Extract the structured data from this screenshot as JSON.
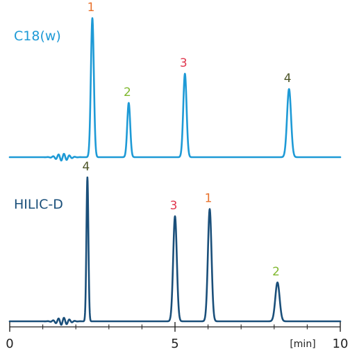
{
  "chart_data": {
    "type": "line",
    "title": "",
    "xlabel": "[min]",
    "ylabel": "",
    "xlim": [
      0,
      10
    ],
    "x_ticks": {
      "major": [
        0,
        5,
        10
      ],
      "major_labels": [
        "0",
        "5",
        "10"
      ],
      "minor": [
        1,
        2,
        3,
        4,
        6,
        7,
        8,
        9
      ]
    },
    "grid": false,
    "colors": {
      "axis": "#222222",
      "peak_label_1": "#e8702a",
      "peak_label_2": "#7fb82e",
      "peak_label_3": "#e0364e",
      "peak_label_4": "#4d5528"
    },
    "series": [
      {
        "name": "C18(w)",
        "color": "#1e9ad6",
        "peaks": [
          {
            "label": "1",
            "time": 2.5,
            "height": 1.0,
            "width": 0.045
          },
          {
            "label": "2",
            "time": 3.6,
            "height": 0.39,
            "width": 0.045
          },
          {
            "label": "3",
            "time": 5.3,
            "height": 0.6,
            "width": 0.05
          },
          {
            "label": "4",
            "time": 8.45,
            "height": 0.49,
            "width": 0.06
          }
        ],
        "disturbance_time": 1.6
      },
      {
        "name": "HILIC-D",
        "color": "#1a4f7a",
        "peaks": [
          {
            "label": "4",
            "time": 2.35,
            "height": 1.0,
            "width": 0.03
          },
          {
            "label": "3",
            "time": 5.0,
            "height": 0.73,
            "width": 0.055
          },
          {
            "label": "1",
            "time": 6.05,
            "height": 0.78,
            "width": 0.055
          },
          {
            "label": "2",
            "time": 8.1,
            "height": 0.27,
            "width": 0.065
          }
        ],
        "disturbance_time": 1.6
      }
    ]
  }
}
